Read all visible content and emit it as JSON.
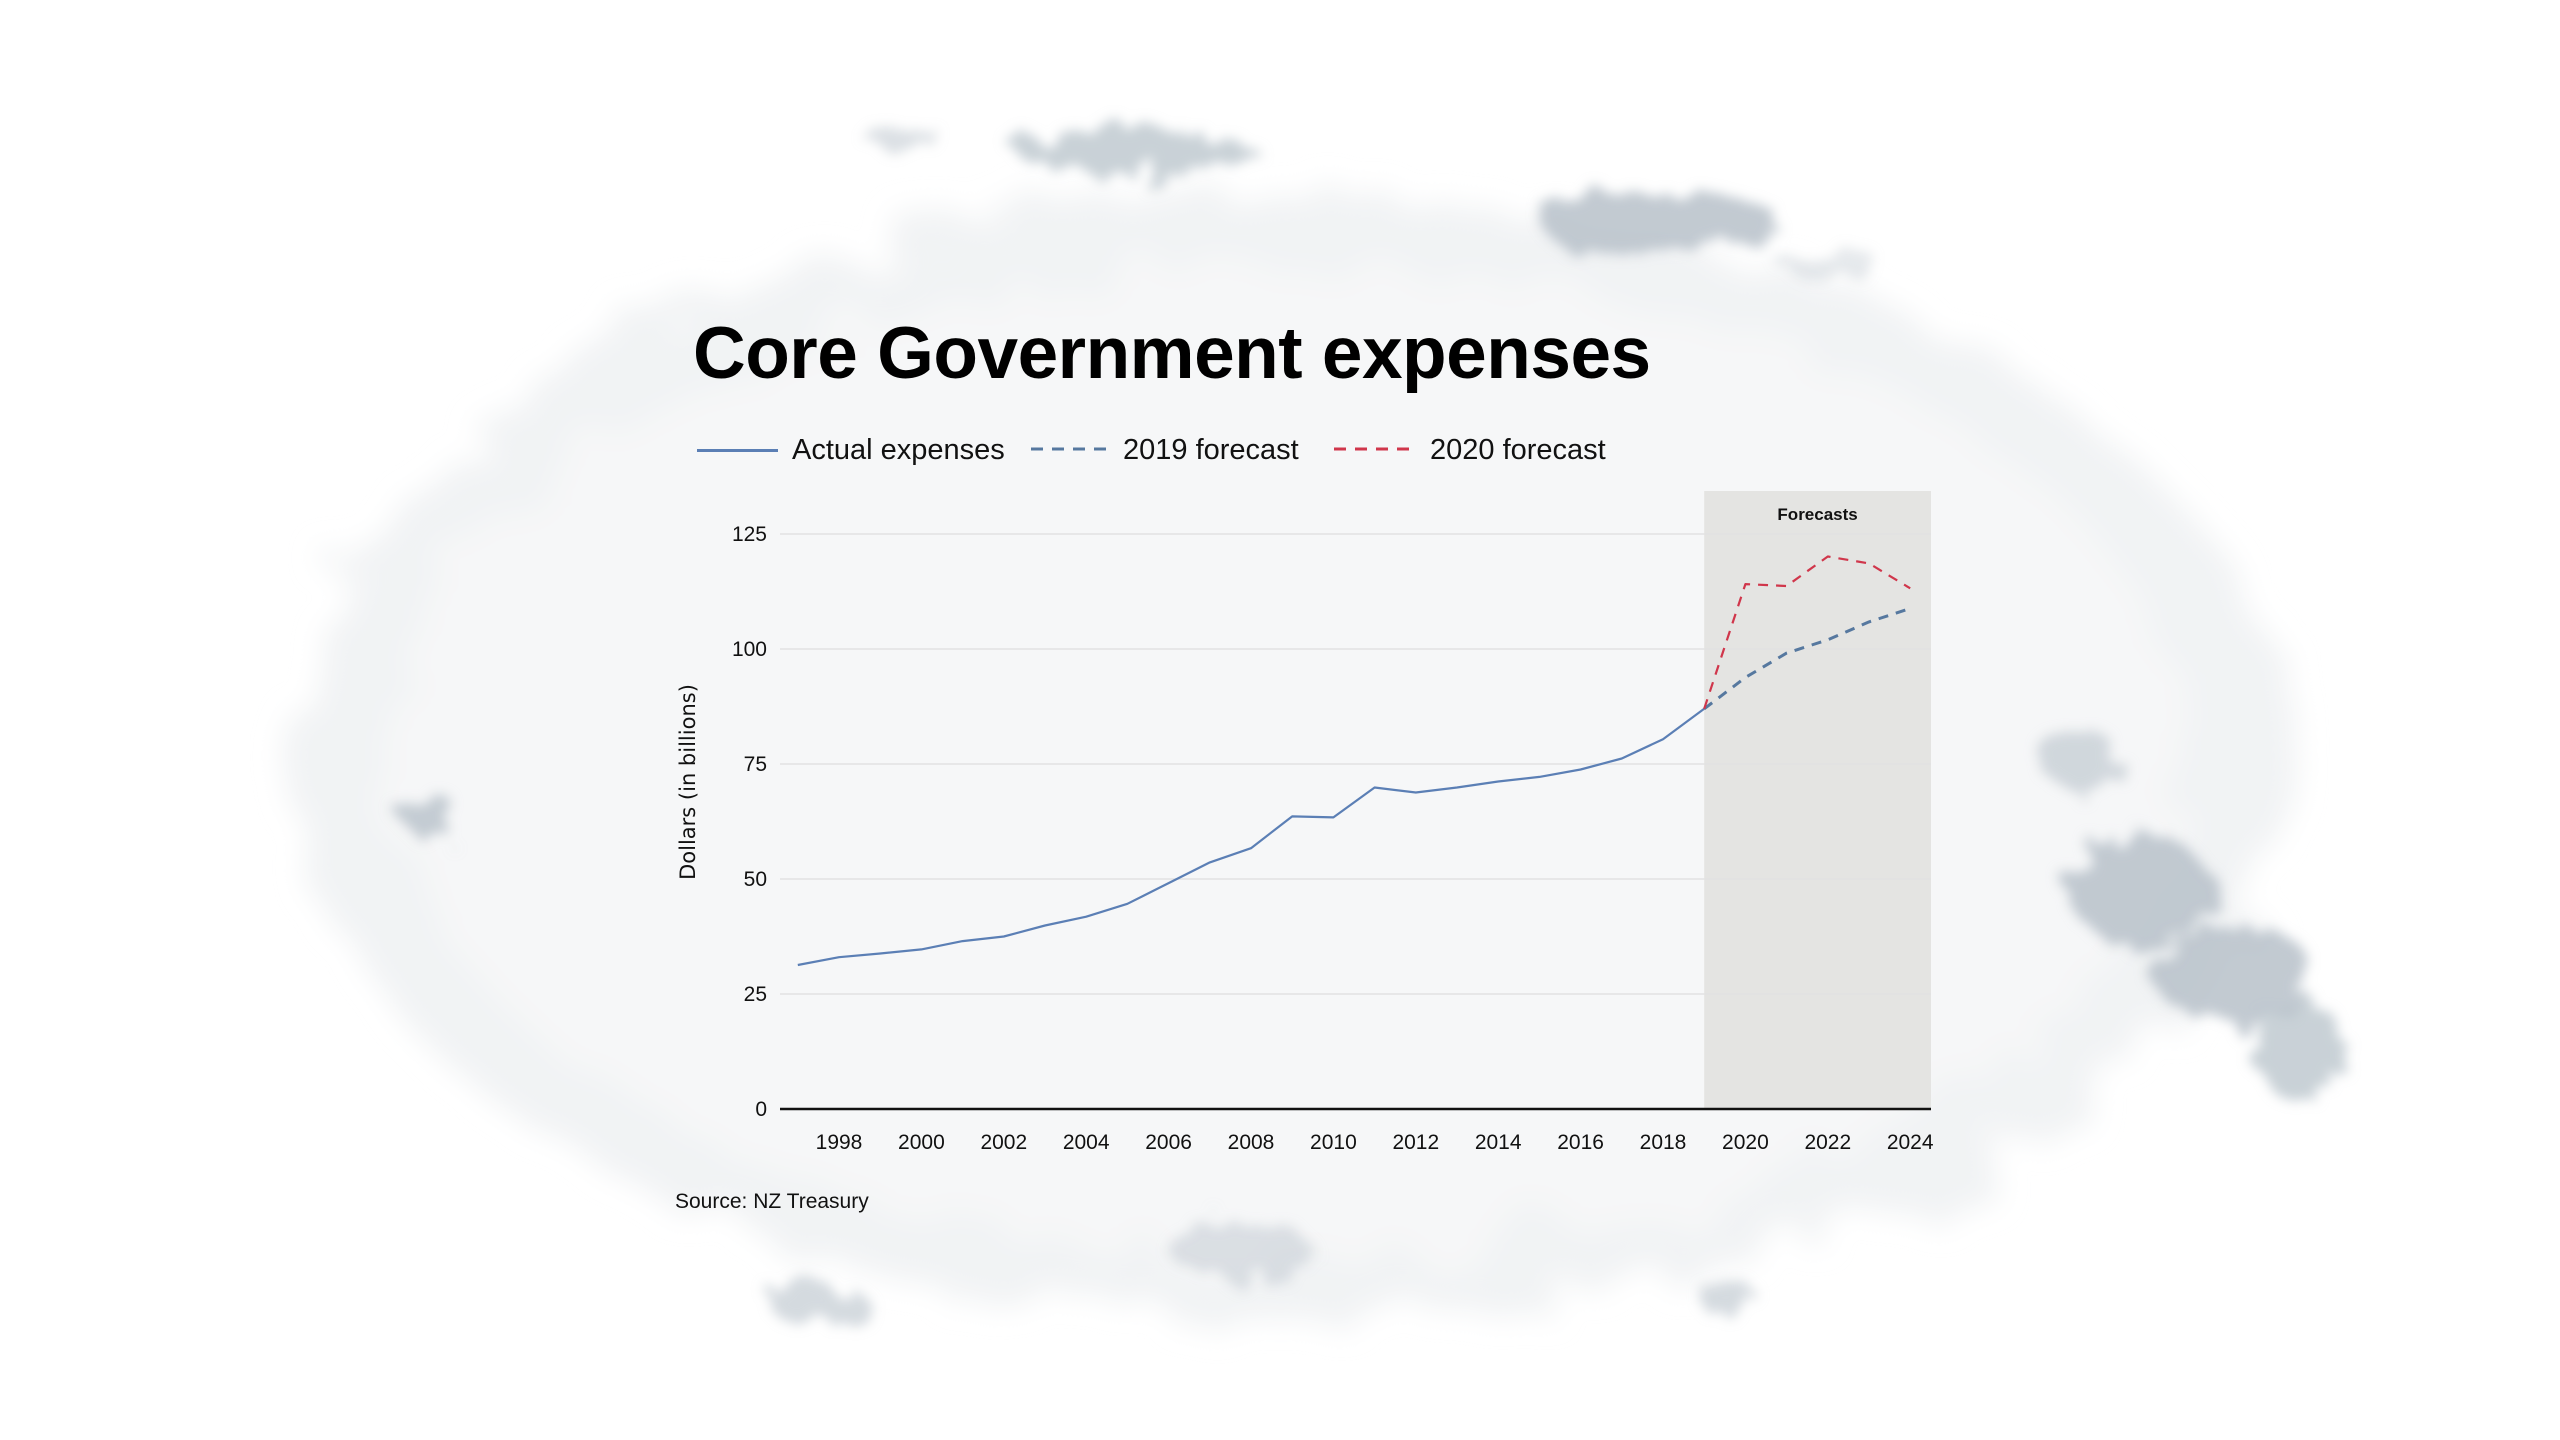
{
  "page": {
    "title": "Core Government expenses",
    "source": "Source: NZ Treasury"
  },
  "legend": [
    {
      "label": "Actual expenses",
      "style": "solid",
      "color": "#5b7fb5"
    },
    {
      "label": "2019 forecast",
      "style": "dashed",
      "color": "#56789f"
    },
    {
      "label": "2020 forecast",
      "style": "dashed",
      "color": "#d0364b"
    }
  ],
  "colors": {
    "actual": "#5b7fb5",
    "forecast_2019": "#56789f",
    "forecast_2020": "#d0364b",
    "forecast_region": "#e4e4e2",
    "gridline": "#e2e2e2",
    "axis": "#111111",
    "watercolor": "#b7c1c9"
  },
  "chart_data": {
    "type": "line",
    "title": "Core Government expenses",
    "xlabel": "",
    "ylabel": "Dollars (in billions)",
    "ylim": [
      0,
      125
    ],
    "xlim": [
      1997,
      2024
    ],
    "yticks": [
      0,
      25,
      50,
      75,
      100,
      125
    ],
    "xticks": [
      1998,
      2000,
      2002,
      2004,
      2006,
      2008,
      2010,
      2012,
      2014,
      2016,
      2018,
      2020,
      2022,
      2024
    ],
    "grid": true,
    "legend_position": "top-left",
    "annotations": [
      {
        "type": "shaded-region",
        "label": "Forecasts",
        "x_from": 2019,
        "x_to": 2024
      }
    ],
    "series": [
      {
        "name": "Actual expenses",
        "style": "solid",
        "x": [
          1997,
          1998,
          1999,
          2000,
          2001,
          2002,
          2003,
          2004,
          2005,
          2006,
          2007,
          2008,
          2009,
          2010,
          2011,
          2012,
          2013,
          2014,
          2015,
          2016,
          2017,
          2018,
          2019
        ],
        "values": [
          31.3,
          33.0,
          33.8,
          34.7,
          36.5,
          37.5,
          39.9,
          41.8,
          44.6,
          49.1,
          53.6,
          56.7,
          63.6,
          63.4,
          69.9,
          68.8,
          69.9,
          71.2,
          72.2,
          73.8,
          76.2,
          80.4,
          87.0
        ]
      },
      {
        "name": "2019 forecast",
        "style": "dashed",
        "x": [
          2019,
          2020,
          2021,
          2022,
          2023,
          2024
        ],
        "values": [
          87.0,
          93.8,
          99.1,
          102.0,
          105.9,
          108.8
        ]
      },
      {
        "name": "2020 forecast",
        "style": "dashed",
        "x": [
          2019,
          2020,
          2021,
          2022,
          2023,
          2024
        ],
        "values": [
          87.0,
          114.1,
          113.7,
          120.1,
          118.6,
          113.2
        ]
      }
    ]
  }
}
